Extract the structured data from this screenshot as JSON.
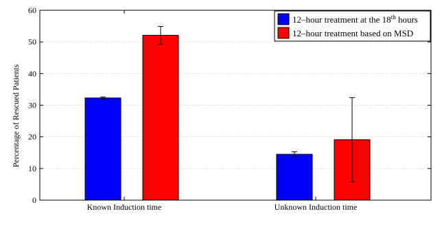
{
  "chart_data": {
    "type": "bar",
    "title": "",
    "xlabel": "",
    "ylabel": "Percentage of Rescued Patients",
    "categories": [
      "Known Induction time",
      "Unknown Induction time"
    ],
    "ylim": [
      0,
      60
    ],
    "yticks": [
      0,
      10,
      20,
      30,
      40,
      50,
      60
    ],
    "grid": true,
    "legend_position": "top-right",
    "series": [
      {
        "name_prefix": "12",
        "name_dash": "–",
        "name_mid": "hour treatment at the 18",
        "name_sup": "th",
        "name_suffix": " hours",
        "color": "#0000ff",
        "values": [
          32.3,
          14.5
        ],
        "errors": [
          0.3,
          0.8
        ]
      },
      {
        "name_prefix": "12",
        "name_dash": "–",
        "name_mid": "hour treatment based on MSD",
        "name_sup": "",
        "name_suffix": "",
        "color": "#ff0000",
        "values": [
          52.1,
          19.1
        ],
        "errors": [
          2.8,
          13.3
        ]
      }
    ]
  }
}
